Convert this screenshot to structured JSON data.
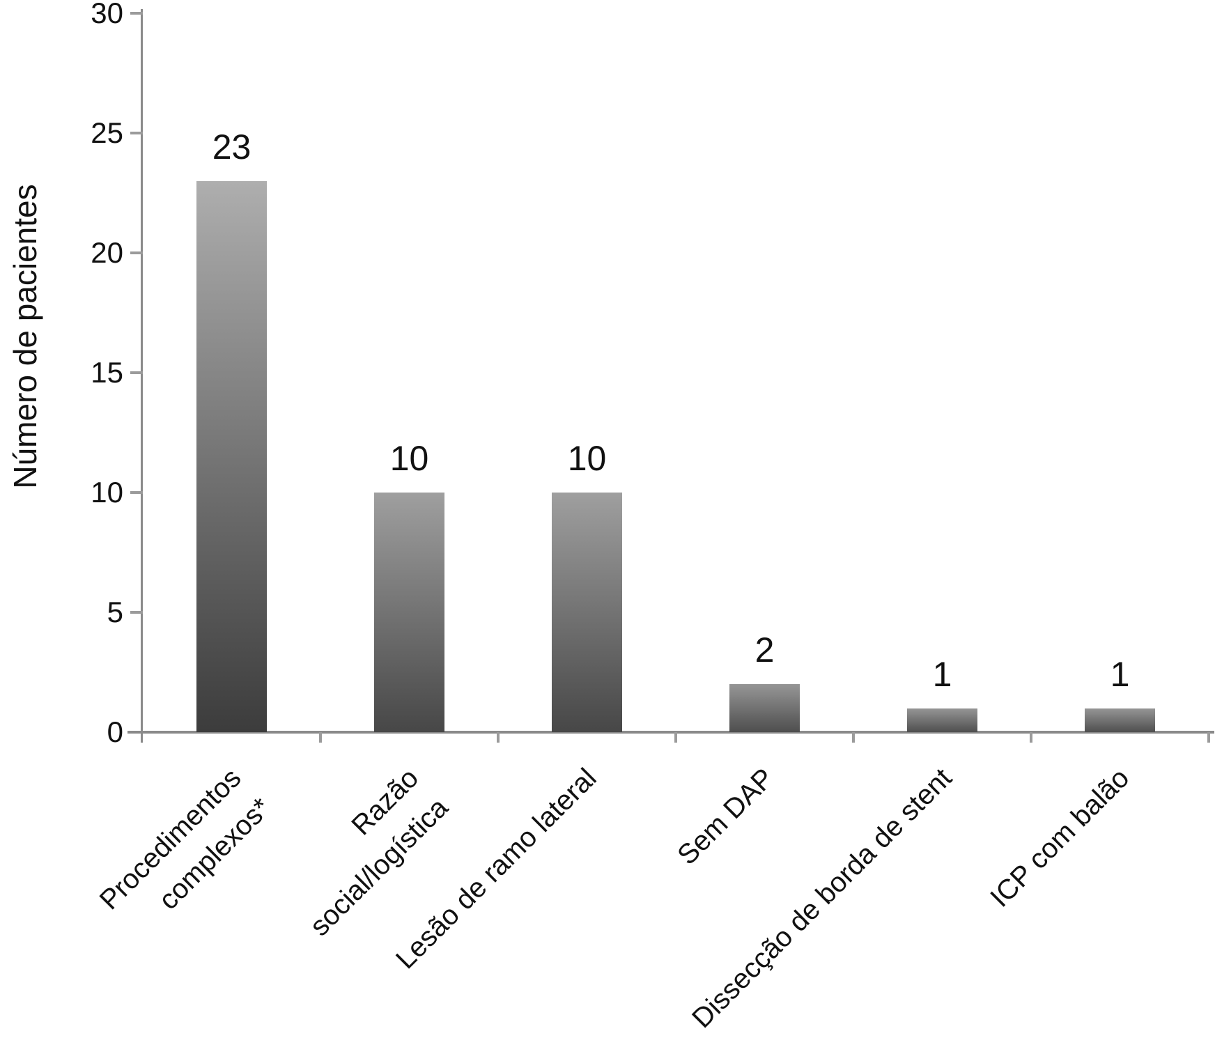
{
  "chart_data": {
    "type": "bar",
    "title": "",
    "xlabel": "",
    "ylabel": "Número de pacientes",
    "ylim": [
      0,
      30
    ],
    "yticks": [
      0,
      5,
      10,
      15,
      20,
      25,
      30
    ],
    "categories": [
      "Procedimentos\ncomplexos*",
      "Razão social/logística",
      "Lesão de ramo lateral",
      "Sem DAP",
      "Dissecção de borda de stent",
      "ICP com balão"
    ],
    "values": [
      23,
      10,
      10,
      2,
      1,
      1
    ],
    "bar_value_labels": [
      "23",
      "10",
      "10",
      "2",
      "1",
      "1"
    ],
    "grid": false,
    "legend_position": "none",
    "colors": {
      "bar_gradient_top": "#acacac",
      "bar_gradient_bottom": "#3c3c3c",
      "axis_line": "#8a8a8a",
      "tick_mark": "#9b9b9b",
      "text": "#111111",
      "background": "#ffffff"
    }
  }
}
